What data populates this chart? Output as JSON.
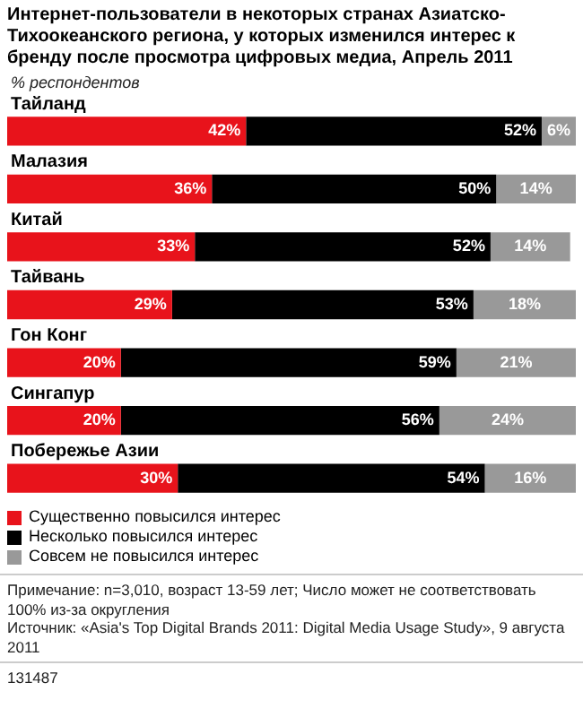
{
  "chart_data": {
    "type": "bar",
    "orientation": "horizontal",
    "stacked": true,
    "title": "Интернет-пользователи в некоторых странах Азиатско-Тихоокеанского региона, у которых изменился интерес к бренду после просмотра цифровых медиа, Апрель 2011",
    "subtitle": "% респондентов",
    "categories": [
      "Тайланд",
      "Малазия",
      "Китай",
      "Тайвань",
      "Гон Конг",
      "Сингапур",
      "Побережье Азии"
    ],
    "series": [
      {
        "name": "Существенно повысился интерес",
        "color": "#e8131b",
        "values": [
          42,
          36,
          33,
          29,
          20,
          20,
          30
        ],
        "value_labels": [
          "42%",
          "36%",
          "33%",
          "29%",
          "20%",
          "20%",
          "30%"
        ]
      },
      {
        "name": "Несколько повысился интерес",
        "color": "#000000",
        "values": [
          52,
          50,
          52,
          53,
          59,
          56,
          54
        ],
        "value_labels": [
          "52%",
          "50%",
          "52%",
          "53%",
          "59%",
          "56%",
          "54%"
        ]
      },
      {
        "name": "Совсем не повысился интерес",
        "color": "#999999",
        "values": [
          6,
          14,
          14,
          18,
          21,
          24,
          16
        ],
        "value_labels": [
          "6%",
          "14%",
          "14%",
          "18%",
          "21%",
          "24%",
          "16%"
        ]
      }
    ],
    "tick_labels": "y",
    "legend": "bottom",
    "annotations": [
      "Примечание: n=3,010, возраст 13-59 лет; Число может не соответствовать 100% из-за округления",
      "Источник: «Asia's Top Digital Brands 2011: Digital Media Usage Study», 9 августа 2011",
      "131487"
    ]
  }
}
